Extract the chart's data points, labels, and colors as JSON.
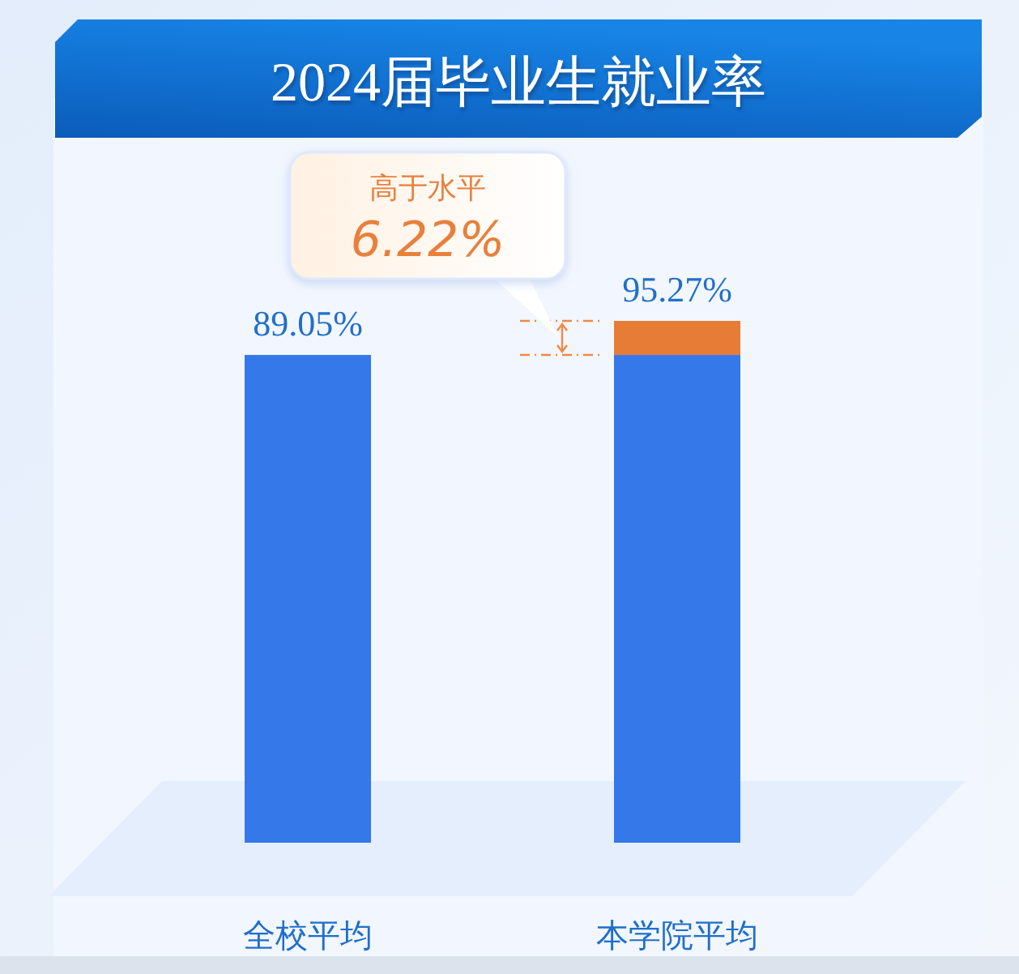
{
  "chart_data": {
    "type": "bar",
    "title": "2024届毕业生就业率",
    "categories": [
      "全校平均",
      "本学院平均"
    ],
    "stacked": true,
    "series": [
      {
        "color": "#3478ea",
        "values": [
          89.05,
          89.05
        ],
        "value_labels": [
          "89.05%",
          null
        ]
      },
      {
        "color": "#e77c36",
        "values": [
          null,
          6.22
        ],
        "value_labels": [
          null,
          "6.22%"
        ]
      }
    ],
    "totals": [
      null,
      "95.27%"
    ],
    "annotations": [
      "高于水平"
    ]
  }
}
